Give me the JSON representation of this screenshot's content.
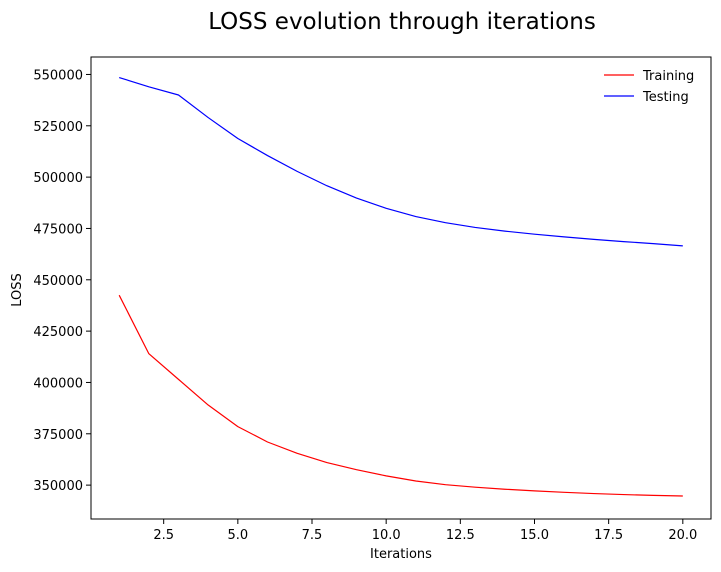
{
  "chart_data": {
    "type": "line",
    "title": "LOSS evolution through iterations",
    "xlabel": "Iterations",
    "ylabel": "LOSS",
    "xlim": [
      0.05,
      20.95
    ],
    "ylim": [
      333500,
      558500
    ],
    "xticks": [
      2.5,
      5.0,
      7.5,
      10.0,
      12.5,
      15.0,
      17.5,
      20.0
    ],
    "xtick_labels": [
      "2.5",
      "5.0",
      "7.5",
      "10.0",
      "12.5",
      "15.0",
      "17.5",
      "20.0"
    ],
    "yticks": [
      350000,
      375000,
      400000,
      425000,
      450000,
      475000,
      500000,
      525000,
      550000
    ],
    "ytick_labels": [
      "350000",
      "375000",
      "400000",
      "425000",
      "450000",
      "475000",
      "500000",
      "525000",
      "550000"
    ],
    "grid": false,
    "legend_position": "top-right",
    "x": [
      1,
      2,
      3,
      4,
      5,
      6,
      7,
      8,
      9,
      10,
      11,
      12,
      13,
      14,
      15,
      16,
      17,
      18,
      19,
      20
    ],
    "series": [
      {
        "name": "Training",
        "color": "#ff0000",
        "values": [
          442500,
          414000,
          401500,
          389000,
          378500,
          371000,
          365500,
          361000,
          357500,
          354500,
          352000,
          350200,
          349000,
          348000,
          347200,
          346500,
          345900,
          345400,
          345000,
          344700
        ]
      },
      {
        "name": "Testing",
        "color": "#0000ff",
        "values": [
          548500,
          544000,
          540000,
          529000,
          518800,
          510500,
          502800,
          495800,
          489800,
          484800,
          480800,
          477800,
          475500,
          473700,
          472200,
          470900,
          469700,
          468600,
          467600,
          466500
        ]
      }
    ]
  }
}
